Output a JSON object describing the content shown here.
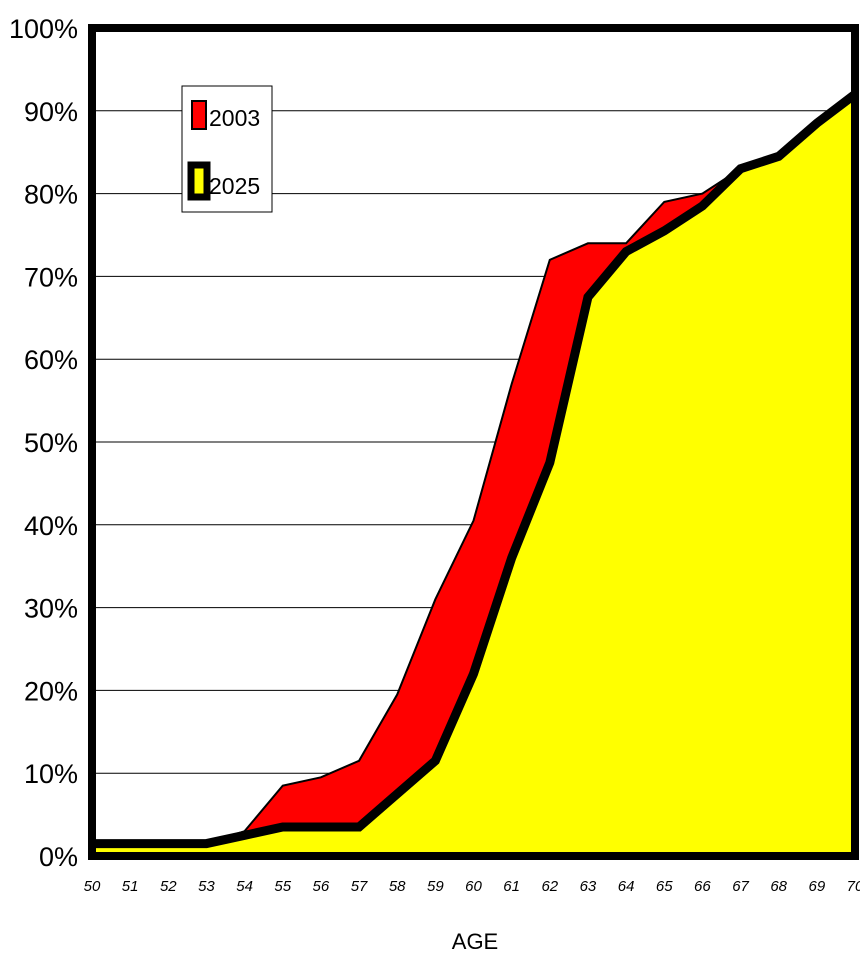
{
  "chart_data": {
    "type": "area",
    "xlabel": "AGE",
    "ylabel": "",
    "title": "",
    "x": [
      50,
      51,
      52,
      53,
      54,
      55,
      56,
      57,
      58,
      59,
      60,
      61,
      62,
      63,
      64,
      65,
      66,
      67,
      68,
      69,
      70
    ],
    "ylim": [
      0,
      100
    ],
    "yticks": [
      "0%",
      "10%",
      "20%",
      "30%",
      "40%",
      "50%",
      "60%",
      "70%",
      "80%",
      "90%",
      "100%"
    ],
    "xticks": [
      "50",
      "51",
      "52",
      "53",
      "54",
      "55",
      "56",
      "57",
      "58",
      "59",
      "60",
      "61",
      "62",
      "63",
      "64",
      "65",
      "66",
      "67",
      "68",
      "69",
      "70"
    ],
    "grid": true,
    "legend_position": "top-left",
    "series": [
      {
        "name": "2003",
        "color": "#ff0000",
        "values": [
          1.5,
          1.5,
          1.5,
          1.5,
          3,
          8.5,
          9.5,
          11.5,
          19.5,
          31,
          40.5,
          57,
          72,
          74,
          74,
          79,
          80,
          83,
          84.5,
          88.5,
          92
        ]
      },
      {
        "name": "2025",
        "color": "#ffff00",
        "values": [
          1.5,
          1.5,
          1.5,
          1.5,
          2.5,
          3.5,
          3.5,
          3.5,
          7.5,
          11.5,
          22,
          36,
          47.5,
          67.5,
          73,
          75.5,
          78.5,
          83,
          84.5,
          88.5,
          92
        ]
      }
    ]
  }
}
